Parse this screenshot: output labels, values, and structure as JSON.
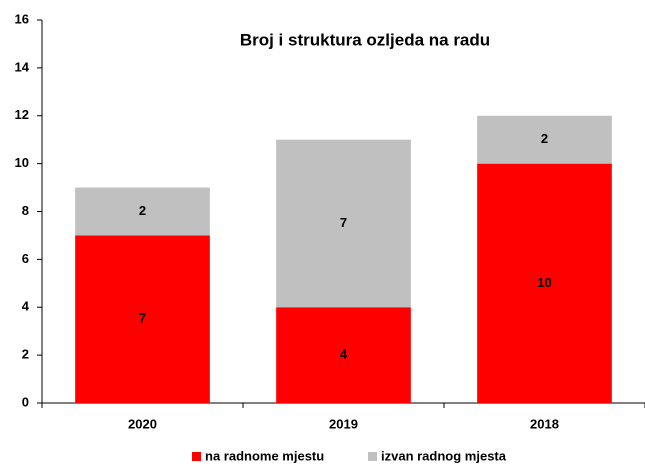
{
  "chart_data": {
    "type": "stacked_bar",
    "title": "Broj i struktura ozljeda na radu",
    "categories": [
      "2020",
      "2019",
      "2018"
    ],
    "series": [
      {
        "name": "na radnome mjestu",
        "color": "#ff0000",
        "values": [
          7,
          4,
          10
        ]
      },
      {
        "name": "izvan radnog mjesta",
        "color": "#c0c0c0",
        "values": [
          2,
          7,
          2
        ]
      }
    ],
    "ylim": [
      0,
      16
    ],
    "yticks": [
      0,
      2,
      4,
      6,
      8,
      10,
      12,
      14,
      16
    ],
    "grid": false
  }
}
